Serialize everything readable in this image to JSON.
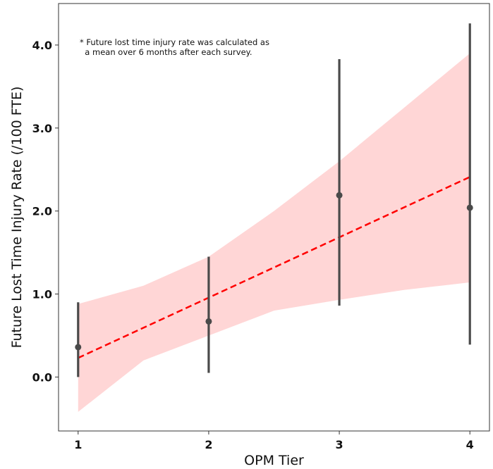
{
  "chart_data": {
    "type": "scatter",
    "xlabel": "OPM Tier",
    "ylabel": "Future Lost Time Injury Rate (/100 FTE)",
    "xlim": [
      0.85,
      4.15
    ],
    "ylim": [
      -0.65,
      4.5
    ],
    "x_ticks": [
      1,
      2,
      3,
      4
    ],
    "x_tick_labels": [
      "1",
      "2",
      "3",
      "4"
    ],
    "y_ticks": [
      0.0,
      1.0,
      2.0,
      3.0,
      4.0
    ],
    "y_tick_labels": [
      "0.0",
      "1.0",
      "2.0",
      "3.0",
      "4.0"
    ],
    "grid": false,
    "annotation": [
      "* Future lost time injury rate was calculated as",
      "  a mean over 6 months after each survey."
    ],
    "points": [
      {
        "x": 1,
        "y": 0.36,
        "err_low": 0.0,
        "err_high": 0.9
      },
      {
        "x": 2,
        "y": 0.67,
        "err_low": 0.05,
        "err_high": 1.45
      },
      {
        "x": 3,
        "y": 2.19,
        "err_low": 0.86,
        "err_high": 3.83
      },
      {
        "x": 4,
        "y": 2.04,
        "err_low": 0.39,
        "err_high": 4.26
      }
    ],
    "regression_line": {
      "x": [
        1,
        4
      ],
      "y": [
        0.23,
        2.41
      ]
    },
    "confidence_band": {
      "x": [
        1,
        1.5,
        2,
        2.5,
        3,
        3.5,
        4
      ],
      "upper": [
        0.88,
        1.1,
        1.45,
        2.0,
        2.6,
        3.25,
        3.9
      ],
      "lower": [
        -0.42,
        0.2,
        0.5,
        0.8,
        0.93,
        1.05,
        1.14
      ]
    },
    "colors": {
      "points": "#4a4a4a",
      "regression_line": "#ff0000",
      "confidence_band": "#ffd6d6",
      "frame": "#333333"
    }
  }
}
